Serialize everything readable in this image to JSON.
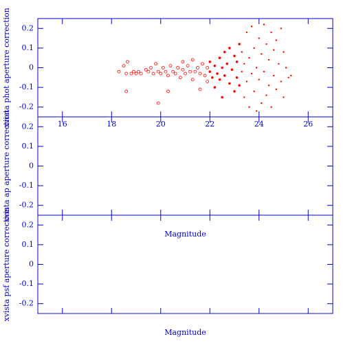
{
  "chart_data": [
    {
      "type": "scatter",
      "ylabel": "xvista phot aperture correction",
      "color": "#ff0000",
      "xlim": [
        15,
        27
      ],
      "ylim": [
        -0.25,
        0.25
      ],
      "xticks": [
        16,
        18,
        20,
        22,
        24,
        26
      ],
      "yticks": [
        0.2,
        0.1,
        0,
        -0.1,
        -0.2
      ],
      "x": [
        18.3,
        18.5,
        18.6,
        18.65,
        18.6,
        18.8,
        18.9,
        19.0,
        19.1,
        19.2,
        19.4,
        19.5,
        19.6,
        19.7,
        19.8,
        19.9,
        19.9,
        20.0,
        20.1,
        20.2,
        20.3,
        20.3,
        20.4,
        20.5,
        20.6,
        20.7,
        20.8,
        20.9,
        20.9,
        21.0,
        21.1,
        21.2,
        21.3,
        21.3,
        21.4,
        21.5,
        21.6,
        21.6,
        21.7,
        21.8,
        21.9,
        21.9,
        22.0,
        22.0,
        22.1,
        22.2,
        22.2,
        22.3,
        22.4,
        22.4,
        22.5,
        22.5,
        22.6,
        22.6,
        22.7,
        22.8,
        22.8,
        22.9,
        23.0,
        23.0,
        23.1,
        23.1,
        23.2,
        23.2,
        23.3,
        23.3,
        23.4,
        23.4,
        23.5,
        23.5,
        23.6,
        23.6,
        23.7,
        23.7,
        23.8,
        23.8,
        23.9,
        23.9,
        24.0,
        24.0,
        24.1,
        24.1,
        24.2,
        24.2,
        24.3,
        24.3,
        24.4,
        24.4,
        24.5,
        24.5,
        24.6,
        24.6,
        24.7,
        24.7,
        24.8,
        24.9,
        24.9,
        25.0,
        25.0,
        25.1,
        25.2,
        25.3
      ],
      "values": [
        -0.02,
        0.01,
        -0.03,
        0.03,
        -0.12,
        -0.03,
        -0.02,
        -0.03,
        -0.02,
        -0.03,
        -0.01,
        -0.02,
        0.0,
        -0.03,
        0.02,
        -0.18,
        -0.02,
        -0.03,
        0.0,
        -0.02,
        -0.12,
        -0.04,
        0.01,
        -0.02,
        -0.03,
        0.0,
        -0.05,
        0.03,
        -0.01,
        -0.03,
        0.01,
        -0.02,
        0.04,
        -0.06,
        -0.02,
        0.0,
        -0.03,
        -0.11,
        0.02,
        -0.04,
        0.0,
        -0.07,
        0.03,
        -0.02,
        -0.05,
        0.01,
        -0.1,
        -0.03,
        0.05,
        -0.06,
        0.0,
        -0.15,
        0.08,
        -0.04,
        0.02,
        -0.08,
        0.1,
        -0.01,
        0.06,
        -0.12,
        0.03,
        -0.05,
        0.12,
        -0.09,
        -0.02,
        0.08,
        -0.15,
        0.02,
        0.18,
        -0.07,
        0.05,
        -0.2,
        0.21,
        -0.03,
        0.1,
        -0.12,
        0.0,
        -0.22,
        0.15,
        -0.06,
        0.07,
        -0.18,
        0.22,
        -0.02,
        0.12,
        -0.14,
        0.04,
        -0.09,
        0.18,
        -0.2,
        0.09,
        -0.04,
        0.14,
        -0.11,
        0.02,
        0.2,
        -0.07,
        0.08,
        -0.15,
        0.0,
        -0.05,
        -0.04
      ]
    },
    {
      "type": "scatter",
      "ylabel": "xvista ap aperture correction",
      "xlabel": "Magnitude",
      "xlim": [
        15,
        27
      ],
      "ylim": [
        -0.25,
        0.25
      ],
      "yticks": [
        0.2,
        0.1,
        0,
        -0.1,
        -0.2
      ]
    },
    {
      "type": "scatter",
      "ylabel": "xvista psf aperture correction",
      "xlabel": "Magnitude",
      "xlim": [
        15,
        27
      ],
      "ylim": [
        -0.25,
        0.25
      ],
      "yticks": [
        0.2,
        0.1,
        0,
        -0.1,
        -0.2
      ]
    }
  ]
}
